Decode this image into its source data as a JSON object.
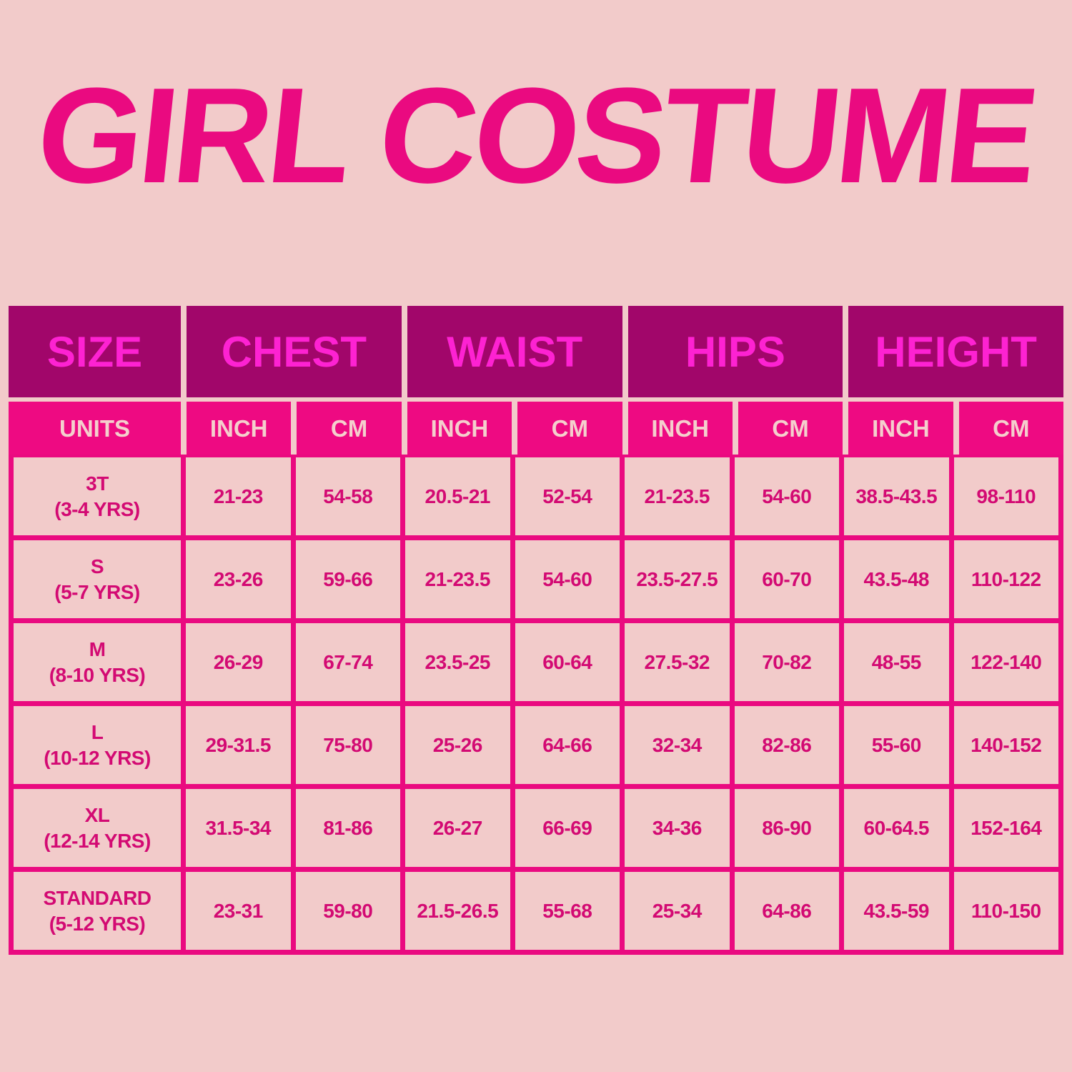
{
  "title": "GIRL COSTUME",
  "headers": [
    "SIZE",
    "CHEST",
    "WAIST",
    "HIPS",
    "HEIGHT"
  ],
  "units": [
    "UNITS",
    "INCH",
    "CM",
    "INCH",
    "CM",
    "INCH",
    "CM",
    "INCH",
    "CM"
  ],
  "rows": [
    {
      "size": "3T",
      "age": "(3-4 YRS)",
      "values": [
        "21-23",
        "54-58",
        "20.5-21",
        "52-54",
        "21-23.5",
        "54-60",
        "38.5-43.5",
        "98-110"
      ]
    },
    {
      "size": "S",
      "age": "(5-7 YRS)",
      "values": [
        "23-26",
        "59-66",
        "21-23.5",
        "54-60",
        "23.5-27.5",
        "60-70",
        "43.5-48",
        "110-122"
      ]
    },
    {
      "size": "M",
      "age": "(8-10 YRS)",
      "values": [
        "26-29",
        "67-74",
        "23.5-25",
        "60-64",
        "27.5-32",
        "70-82",
        "48-55",
        "122-140"
      ]
    },
    {
      "size": "L",
      "age": "(10-12 YRS)",
      "values": [
        "29-31.5",
        "75-80",
        "25-26",
        "64-66",
        "32-34",
        "82-86",
        "55-60",
        "140-152"
      ]
    },
    {
      "size": "XL",
      "age": "(12-14 YRS)",
      "values": [
        "31.5-34",
        "81-86",
        "26-27",
        "66-69",
        "34-36",
        "86-90",
        "60-64.5",
        "152-164"
      ]
    },
    {
      "size": "STANDARD",
      "age": "(5-12 YRS)",
      "values": [
        "23-31",
        "59-80",
        "21.5-26.5",
        "55-68",
        "25-34",
        "64-86",
        "43.5-59",
        "110-150"
      ]
    }
  ],
  "colors": {
    "background": "#f2cbca",
    "title": "#ea0a80",
    "header": "#a1066a",
    "header_text": "#fd22d2",
    "units_row": "#ee0a82",
    "cell_text": "#d30a73"
  }
}
